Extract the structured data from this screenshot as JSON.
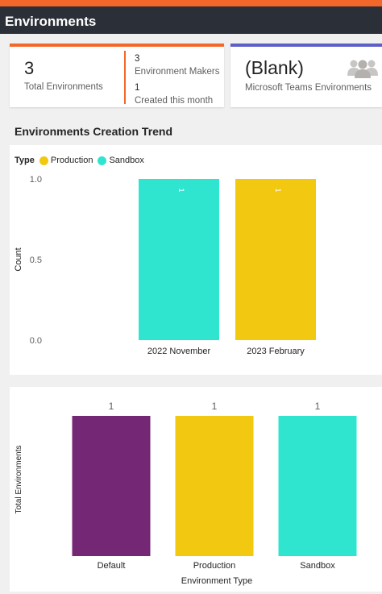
{
  "header": {
    "title": "Environments"
  },
  "cards": {
    "total": {
      "value": "3",
      "label": "Total Environments"
    },
    "makers": {
      "value": "3",
      "label": "Environment Makers"
    },
    "created": {
      "value": "1",
      "label": "Created this month"
    },
    "teams": {
      "value": "(Blank)",
      "label": "Microsoft Teams Environments",
      "icon": "people-icon"
    }
  },
  "trend_section": {
    "title": "Environments Creation Trend"
  },
  "colors": {
    "accent": "#f3672a",
    "teams_accent": "#5b5fc7",
    "production": "#f2c811",
    "sandbox": "#30e5d0",
    "default": "#742774"
  },
  "chart_data": [
    {
      "type": "bar",
      "title": "Environments Creation Trend",
      "legend_title": "Type",
      "legend_position": "top-left",
      "categories": [
        "2022 November",
        "2023 February"
      ],
      "series": [
        {
          "name": "Production",
          "values": [
            0,
            1
          ]
        },
        {
          "name": "Sandbox",
          "values": [
            1,
            0
          ]
        }
      ],
      "data_labels": [
        "1",
        "1"
      ],
      "ylabel": "Count",
      "xlabel": "",
      "ylim": [
        0,
        1
      ],
      "yticks": [
        "0.0",
        "0.5",
        "1.0"
      ]
    },
    {
      "type": "bar",
      "categories": [
        "Default",
        "Production",
        "Sandbox"
      ],
      "values": [
        1,
        1,
        1
      ],
      "data_labels": [
        "1",
        "1",
        "1"
      ],
      "xlabel": "Environment Type",
      "ylabel": "Total Environments",
      "ylim": [
        0,
        1
      ]
    }
  ]
}
